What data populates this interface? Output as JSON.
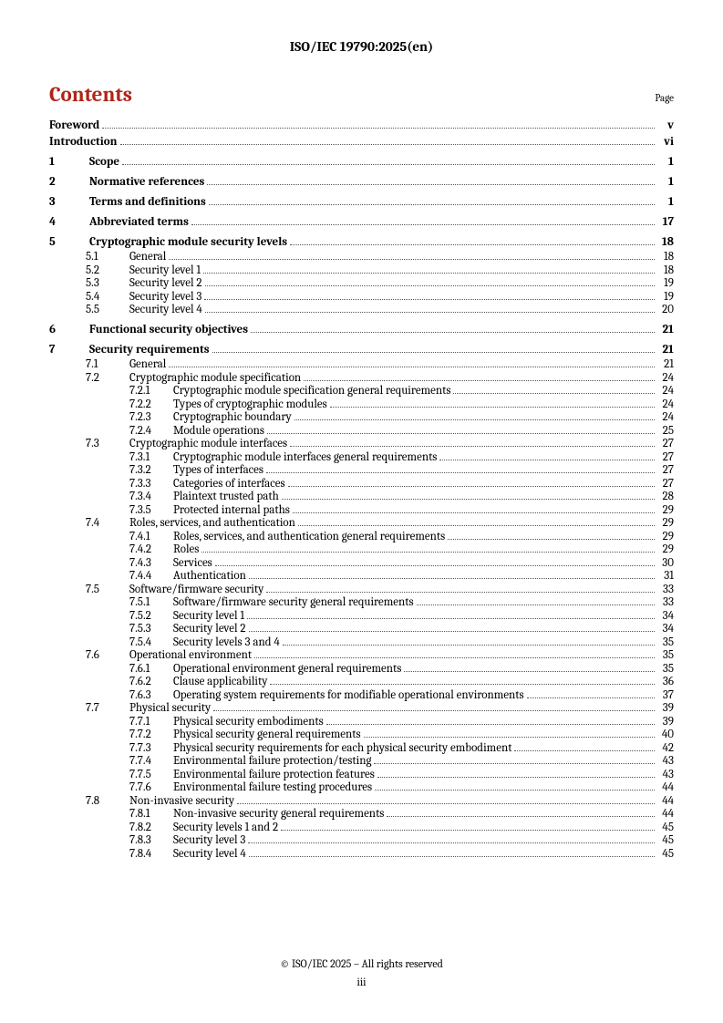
{
  "header": "ISO/IEC 19790:2025(en)",
  "contents_title": "Contents",
  "page_label": "Page",
  "footer_copyright": "© ISO/IEC 2025 – All rights reserved",
  "footer_page": "iii",
  "toc": [
    {
      "level": "l0-front",
      "num": "",
      "title": "Foreword",
      "page": "v"
    },
    {
      "level": "l0-front",
      "num": "",
      "title": "Introduction",
      "page": "vi"
    },
    {
      "level": "l0",
      "num": "1",
      "title": "Scope",
      "page": "1"
    },
    {
      "level": "l0",
      "num": "2",
      "title": "Normative references",
      "page": "1"
    },
    {
      "level": "l0",
      "num": "3",
      "title": "Terms and definitions",
      "page": "1"
    },
    {
      "level": "l0",
      "num": "4",
      "title": "Abbreviated terms",
      "page": "17"
    },
    {
      "level": "l0",
      "num": "5",
      "title": "Cryptographic module security levels",
      "page": "18"
    },
    {
      "level": "l1",
      "num": "5.1",
      "title": "General",
      "page": "18"
    },
    {
      "level": "l1",
      "num": "5.2",
      "title": "Security level 1",
      "page": "18"
    },
    {
      "level": "l1",
      "num": "5.3",
      "title": "Security level 2",
      "page": "19"
    },
    {
      "level": "l1",
      "num": "5.4",
      "title": "Security level 3",
      "page": "19"
    },
    {
      "level": "l1",
      "num": "5.5",
      "title": "Security level 4",
      "page": "20"
    },
    {
      "level": "l0",
      "num": "6",
      "title": "Functional security objectives",
      "page": "21"
    },
    {
      "level": "l0",
      "num": "7",
      "title": "Security requirements",
      "page": "21"
    },
    {
      "level": "l1",
      "num": "7.1",
      "title": "General",
      "page": "21"
    },
    {
      "level": "l1",
      "num": "7.2",
      "title": "Cryptographic module specification",
      "page": "24"
    },
    {
      "level": "l2",
      "num": "7.2.1",
      "title": "Cryptographic module specification general requirements",
      "page": "24"
    },
    {
      "level": "l2",
      "num": "7.2.2",
      "title": "Types of cryptographic modules",
      "page": "24"
    },
    {
      "level": "l2",
      "num": "7.2.3",
      "title": "Cryptographic boundary",
      "page": "24"
    },
    {
      "level": "l2",
      "num": "7.2.4",
      "title": "Module operations",
      "page": "25"
    },
    {
      "level": "l1",
      "num": "7.3",
      "title": "Cryptographic module interfaces",
      "page": "27"
    },
    {
      "level": "l2",
      "num": "7.3.1",
      "title": "Cryptographic module interfaces general requirements",
      "page": "27"
    },
    {
      "level": "l2",
      "num": "7.3.2",
      "title": "Types of interfaces",
      "page": "27"
    },
    {
      "level": "l2",
      "num": "7.3.3",
      "title": "Categories of interfaces",
      "page": "27"
    },
    {
      "level": "l2",
      "num": "7.3.4",
      "title": "Plaintext trusted path",
      "page": "28"
    },
    {
      "level": "l2",
      "num": "7.3.5",
      "title": "Protected internal paths",
      "page": "29"
    },
    {
      "level": "l1",
      "num": "7.4",
      "title": "Roles, services, and authentication",
      "page": "29"
    },
    {
      "level": "l2",
      "num": "7.4.1",
      "title": "Roles, services, and authentication general requirements",
      "page": "29"
    },
    {
      "level": "l2",
      "num": "7.4.2",
      "title": "Roles",
      "page": "29"
    },
    {
      "level": "l2",
      "num": "7.4.3",
      "title": "Services",
      "page": "30"
    },
    {
      "level": "l2",
      "num": "7.4.4",
      "title": "Authentication",
      "page": "31"
    },
    {
      "level": "l1",
      "num": "7.5",
      "title": "Software/firmware security",
      "page": "33"
    },
    {
      "level": "l2",
      "num": "7.5.1",
      "title": "Software/firmware security general requirements",
      "page": "33"
    },
    {
      "level": "l2",
      "num": "7.5.2",
      "title": "Security level 1",
      "page": "34"
    },
    {
      "level": "l2",
      "num": "7.5.3",
      "title": "Security level 2",
      "page": "34"
    },
    {
      "level": "l2",
      "num": "7.5.4",
      "title": "Security levels 3 and 4",
      "page": "35"
    },
    {
      "level": "l1",
      "num": "7.6",
      "title": "Operational environment",
      "page": "35"
    },
    {
      "level": "l2",
      "num": "7.6.1",
      "title": "Operational environment general requirements",
      "page": "35"
    },
    {
      "level": "l2",
      "num": "7.6.2",
      "title": "Clause applicability",
      "page": "36"
    },
    {
      "level": "l2",
      "num": "7.6.3",
      "title": "Operating system requirements for modifiable operational environments",
      "page": "37"
    },
    {
      "level": "l1",
      "num": "7.7",
      "title": "Physical security",
      "page": "39"
    },
    {
      "level": "l2",
      "num": "7.7.1",
      "title": "Physical security embodiments",
      "page": "39"
    },
    {
      "level": "l2",
      "num": "7.7.2",
      "title": "Physical security general requirements",
      "page": "40"
    },
    {
      "level": "l2",
      "num": "7.7.3",
      "title": "Physical security requirements for each physical security embodiment",
      "page": "42"
    },
    {
      "level": "l2",
      "num": "7.7.4",
      "title": "Environmental failure protection/testing",
      "page": "43"
    },
    {
      "level": "l2",
      "num": "7.7.5",
      "title": "Environmental failure protection features",
      "page": "43"
    },
    {
      "level": "l2",
      "num": "7.7.6",
      "title": "Environmental failure testing procedures",
      "page": "44"
    },
    {
      "level": "l1",
      "num": "7.8",
      "title": "Non-invasive security",
      "page": "44"
    },
    {
      "level": "l2",
      "num": "7.8.1",
      "title": "Non-invasive security general requirements",
      "page": "44"
    },
    {
      "level": "l2",
      "num": "7.8.2",
      "title": "Security levels 1 and 2",
      "page": "45"
    },
    {
      "level": "l2",
      "num": "7.8.3",
      "title": "Security level 3",
      "page": "45"
    },
    {
      "level": "l2",
      "num": "7.8.4",
      "title": "Security level 4",
      "page": "45"
    }
  ]
}
